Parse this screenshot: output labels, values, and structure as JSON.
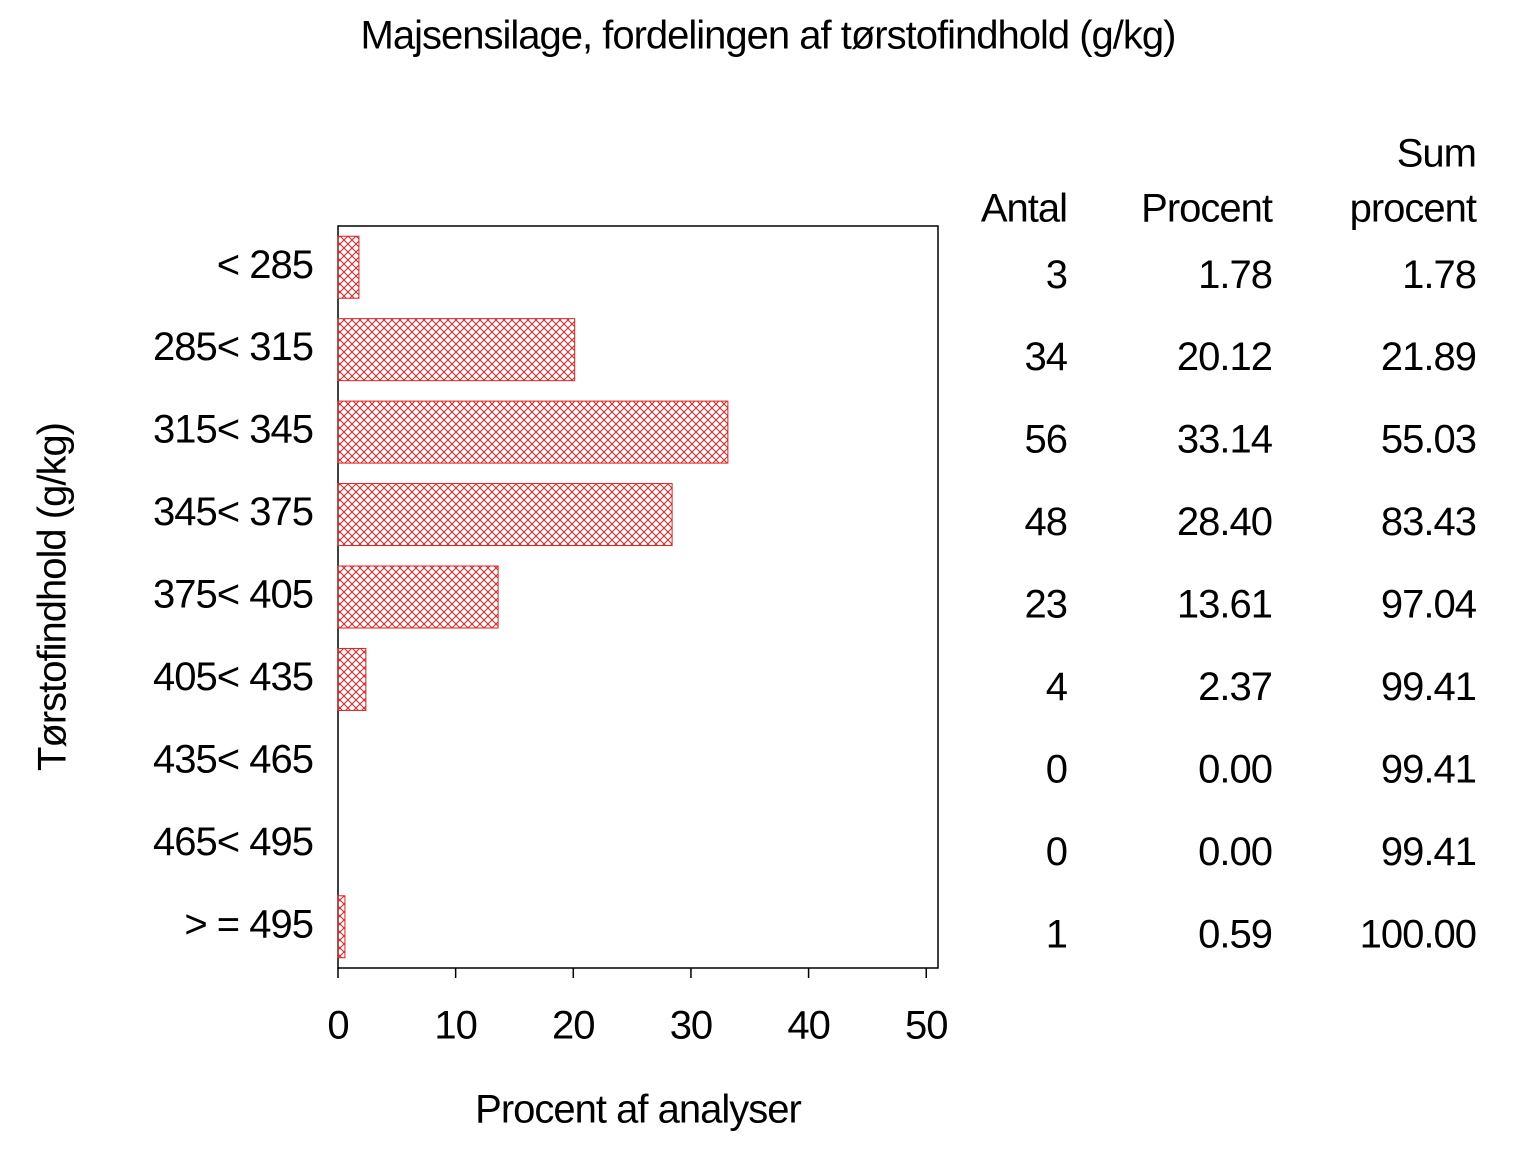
{
  "chart_data": {
    "type": "hbar",
    "title": "Majsensilage, fordelingen af tørstofindhold (g/kg)",
    "x_label": "Procent af analyser",
    "y_label": "Tørstofindhold (g/kg)",
    "categories": [
      "< 285",
      "285< 315",
      "315< 345",
      "345< 375",
      "375< 405",
      "405< 435",
      "435< 465",
      "465< 495",
      "> = 495"
    ],
    "values": [
      1.78,
      20.12,
      33.14,
      28.4,
      13.61,
      2.37,
      0,
      0,
      0.59
    ],
    "value_labels": [
      "1.78",
      "20.12",
      "33.14",
      "28.40",
      "13.61",
      "2.37",
      "0.00",
      "0.00",
      "0.59"
    ],
    "color": "#e02020",
    "xlim": [
      0,
      51
    ],
    "xticks": [
      0,
      10,
      20,
      30,
      40,
      50
    ],
    "table": {
      "count_header": "Antal",
      "counts": [
        3,
        34,
        56,
        48,
        23,
        4,
        0,
        0,
        1
      ],
      "percent_header": "Procent",
      "cum_header": [
        "Sum",
        "procent"
      ],
      "cumulative": [
        "1.78",
        "21.89",
        "55.03",
        "83.43",
        "97.04",
        "99.41",
        "99.41",
        "99.41",
        "100.00"
      ]
    }
  }
}
